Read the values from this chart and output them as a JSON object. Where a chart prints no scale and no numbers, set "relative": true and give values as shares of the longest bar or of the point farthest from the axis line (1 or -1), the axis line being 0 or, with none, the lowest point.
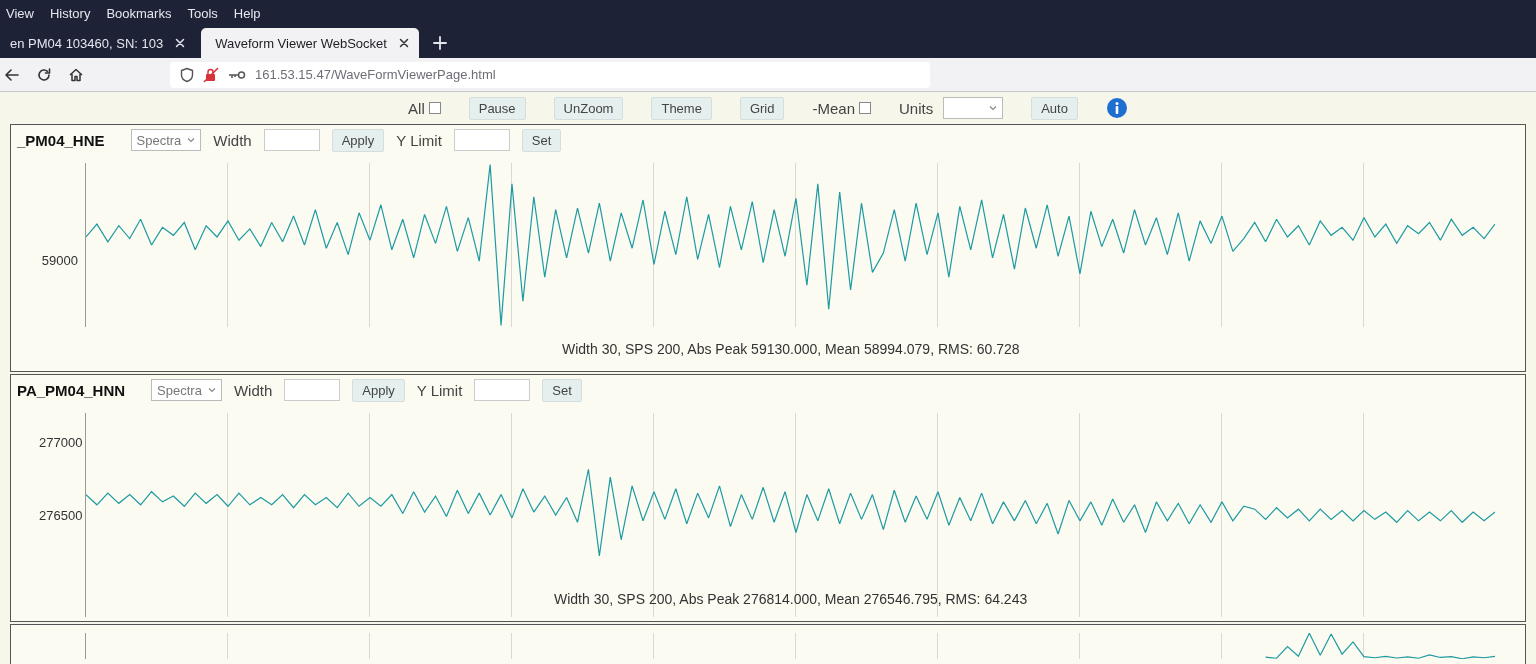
{
  "chart_data": [
    {
      "type": "other",
      "annotations": [
        "View",
        "History",
        "Bookmarks",
        "Tools",
        "Help",
        "en PM04 103460, SN: 103",
        "Waveform Viewer WebSocket",
        "161.53.15.47/WaveFormViewerPage.html",
        "All",
        "Pause",
        "UnZoom",
        "Theme",
        "Grid",
        "-Mean",
        "Units",
        "Auto"
      ]
    },
    {
      "type": "line",
      "title": "_PM04_HNE",
      "relative": true,
      "grid": "x",
      "tick_labels": false,
      "annotations": [
        "Spectra",
        "Width",
        "Apply",
        "Y Limit",
        "Set",
        "Width 30, SPS 200, Abs Peak 59130.000, Mean 58994.079, RMS: 60.728",
        "59000"
      ],
      "categories": [
        null,
        null,
        null,
        null,
        null,
        null,
        null,
        null,
        null,
        null,
        null,
        null,
        null,
        null,
        null,
        null,
        null,
        null,
        null,
        null,
        null,
        null,
        null,
        null,
        null,
        null,
        null,
        null,
        null,
        null,
        null,
        null,
        null,
        null,
        null,
        null,
        null,
        null,
        null,
        null,
        null,
        null,
        null,
        null,
        null,
        null,
        null,
        null,
        null,
        null,
        null,
        null,
        null,
        null,
        null,
        null,
        null,
        null,
        null,
        null,
        null,
        null,
        null,
        null,
        null,
        null,
        null,
        null,
        null,
        null,
        null,
        null,
        null,
        null,
        null,
        null,
        null,
        null,
        null,
        null,
        null,
        null,
        null,
        null,
        null,
        null,
        null,
        null,
        null,
        null,
        null,
        null,
        null,
        null,
        null,
        null,
        null,
        null,
        null,
        null,
        null,
        null,
        null,
        null,
        null,
        null,
        null,
        null,
        null,
        null,
        null,
        null,
        null,
        null,
        null,
        null,
        null,
        null,
        null,
        null,
        null,
        null,
        null,
        null,
        null,
        null,
        null,
        null,
        null,
        null
      ],
      "series": [
        {
          "color": "#1e9aa2",
          "values": [
            0.55,
            0.63,
            0.52,
            0.62,
            0.54,
            0.66,
            0.5,
            0.61,
            0.56,
            0.64,
            0.47,
            0.62,
            0.55,
            0.65,
            0.53,
            0.6,
            0.49,
            0.64,
            0.52,
            0.68,
            0.5,
            0.72,
            0.48,
            0.64,
            0.44,
            0.7,
            0.53,
            0.75,
            0.47,
            0.66,
            0.42,
            0.69,
            0.51,
            0.74,
            0.46,
            0.67,
            0.4,
            1.0,
            0.0,
            0.88,
            0.15,
            0.8,
            0.3,
            0.72,
            0.42,
            0.73,
            0.45,
            0.76,
            0.4,
            0.7,
            0.48,
            0.78,
            0.38,
            0.71,
            0.44,
            0.8,
            0.41,
            0.69,
            0.36,
            0.74,
            0.47,
            0.77,
            0.39,
            0.72,
            0.43,
            0.79,
            0.25,
            0.88,
            0.1,
            0.83,
            0.22,
            0.76,
            0.33,
            0.45,
            0.72,
            0.4,
            0.76,
            0.44,
            0.7,
            0.3,
            0.74,
            0.47,
            0.78,
            0.42,
            0.69,
            0.35,
            0.73,
            0.48,
            0.75,
            0.43,
            0.68,
            0.32,
            0.71,
            0.49,
            0.66,
            0.45,
            0.72,
            0.5,
            0.67,
            0.44,
            0.7,
            0.4,
            0.65,
            0.51,
            0.68,
            0.46,
            0.54,
            0.64,
            0.52,
            0.66,
            0.55,
            0.62,
            0.5,
            0.65,
            0.56,
            0.61,
            0.53,
            0.67,
            0.55,
            0.63,
            0.51,
            0.62,
            0.57,
            0.64,
            0.53,
            0.66,
            0.56,
            0.61,
            0.54,
            0.63
          ]
        }
      ]
    },
    {
      "type": "line",
      "title": "PA_PM04_HNN",
      "grid": "x",
      "tick_labels": "y",
      "ylim": [
        275800,
        277200
      ],
      "yticks": [
        276500,
        277000
      ],
      "annotations": [
        "Spectra",
        "Width",
        "Apply",
        "Y Limit",
        "Set",
        "Width 30, SPS 200, Abs Peak 276814.000, Mean 276546.795, RMS: 64.243"
      ],
      "categories": [
        null,
        null,
        null,
        null,
        null,
        null,
        null,
        null,
        null,
        null,
        null,
        null,
        null,
        null,
        null,
        null,
        null,
        null,
        null,
        null,
        null,
        null,
        null,
        null,
        null,
        null,
        null,
        null,
        null,
        null,
        null,
        null,
        null,
        null,
        null,
        null,
        null,
        null,
        null,
        null,
        null,
        null,
        null,
        null,
        null,
        null,
        null,
        null,
        null,
        null,
        null,
        null,
        null,
        null,
        null,
        null,
        null,
        null,
        null,
        null,
        null,
        null,
        null,
        null,
        null,
        null,
        null,
        null,
        null,
        null,
        null,
        null,
        null,
        null,
        null,
        null,
        null,
        null,
        null,
        null,
        null,
        null,
        null,
        null,
        null,
        null,
        null,
        null,
        null,
        null,
        null,
        null,
        null,
        null,
        null,
        null,
        null,
        null,
        null,
        null,
        null,
        null,
        null,
        null,
        null,
        null,
        null,
        null,
        null,
        null,
        null,
        null,
        null,
        null,
        null,
        null,
        null,
        null,
        null,
        null,
        null,
        null,
        null,
        null,
        null,
        null,
        null,
        null,
        null,
        null
      ],
      "series": [
        {
          "color": "#1e9aa2",
          "values": [
            276640,
            276570,
            276650,
            276580,
            276640,
            276570,
            276660,
            276590,
            276630,
            276560,
            276650,
            276580,
            276640,
            276560,
            276650,
            276570,
            276620,
            276570,
            276640,
            276550,
            276640,
            276570,
            276620,
            276550,
            276650,
            276560,
            276620,
            276560,
            276640,
            276510,
            276660,
            276520,
            276630,
            276490,
            276670,
            276510,
            276650,
            276500,
            276640,
            276480,
            276680,
            276520,
            276630,
            276500,
            276620,
            276450,
            276814,
            276220,
            276760,
            276330,
            276700,
            276460,
            276660,
            276470,
            276680,
            276440,
            276650,
            276480,
            276700,
            276420,
            276640,
            276470,
            276690,
            276450,
            276660,
            276380,
            276640,
            276460,
            276680,
            276440,
            276650,
            276470,
            276640,
            276400,
            276670,
            276450,
            276630,
            276470,
            276660,
            276430,
            276620,
            276460,
            276650,
            276440,
            276590,
            276460,
            276600,
            276440,
            276580,
            276370,
            276600,
            276460,
            276590,
            276430,
            276610,
            276450,
            276570,
            276380,
            276590,
            276460,
            276580,
            276440,
            276570,
            276450,
            276590,
            276460,
            276560,
            276540,
            276470,
            276550,
            276480,
            276540,
            276460,
            276540,
            276470,
            276530,
            276460,
            276530,
            276470,
            276520,
            276450,
            276530,
            276460,
            276520,
            276460,
            276530,
            276450,
            276520,
            276460,
            276520
          ]
        }
      ]
    },
    {
      "type": "line",
      "relative": true,
      "grid": "x",
      "tick_labels": false,
      "categories": [
        null,
        null,
        null,
        null,
        null,
        null,
        null,
        null,
        null,
        null,
        null,
        null,
        null,
        null,
        null,
        null,
        null,
        null,
        null,
        null,
        null,
        null,
        null,
        null,
        null,
        null,
        null,
        null,
        null,
        null,
        null,
        null,
        null,
        null,
        null,
        null,
        null,
        null,
        null,
        null,
        null,
        null,
        null,
        null,
        null,
        null,
        null,
        null,
        null,
        null,
        null,
        null,
        null,
        null,
        null,
        null,
        null,
        null,
        null,
        null,
        null,
        null,
        null,
        null,
        null,
        null,
        null,
        null,
        null,
        null,
        null,
        null,
        null,
        null,
        null,
        null,
        null,
        null,
        null,
        null,
        null,
        null,
        null,
        null,
        null,
        null,
        null,
        null,
        null,
        null,
        null,
        null,
        null,
        null,
        null,
        null,
        null,
        null,
        null,
        null,
        null,
        null,
        null,
        null,
        null,
        null,
        null,
        null,
        null,
        null,
        null,
        null,
        null,
        null,
        null,
        null,
        null,
        null,
        null,
        null,
        null,
        null,
        null,
        null,
        null,
        null,
        null,
        null,
        null,
        null
      ],
      "series": [
        {
          "color": "#1e9aa2",
          "values": [
            null,
            null,
            null,
            null,
            null,
            null,
            null,
            null,
            null,
            null,
            null,
            null,
            null,
            null,
            null,
            null,
            null,
            null,
            null,
            null,
            null,
            null,
            null,
            null,
            null,
            null,
            null,
            null,
            null,
            null,
            null,
            null,
            null,
            null,
            null,
            null,
            null,
            null,
            null,
            null,
            null,
            null,
            null,
            null,
            null,
            null,
            null,
            null,
            null,
            null,
            null,
            null,
            null,
            null,
            null,
            null,
            null,
            null,
            null,
            null,
            null,
            null,
            null,
            null,
            null,
            null,
            null,
            null,
            null,
            null,
            null,
            null,
            null,
            null,
            null,
            null,
            null,
            null,
            null,
            null,
            null,
            null,
            null,
            null,
            null,
            null,
            null,
            null,
            null,
            null,
            null,
            null,
            null,
            null,
            null,
            null,
            null,
            null,
            null,
            null,
            null,
            null,
            null,
            null,
            null,
            null,
            null,
            null,
            0.06,
            0.02,
            0.48,
            0.1,
            1.0,
            0.14,
            0.97,
            0.18,
            0.66,
            0.08,
            0.04,
            0.09,
            0.03,
            0.07,
            0.02,
            0.15,
            0.05,
            0.08,
            0.0,
            0.07,
            0.04,
            0.09
          ]
        }
      ]
    }
  ]
}
